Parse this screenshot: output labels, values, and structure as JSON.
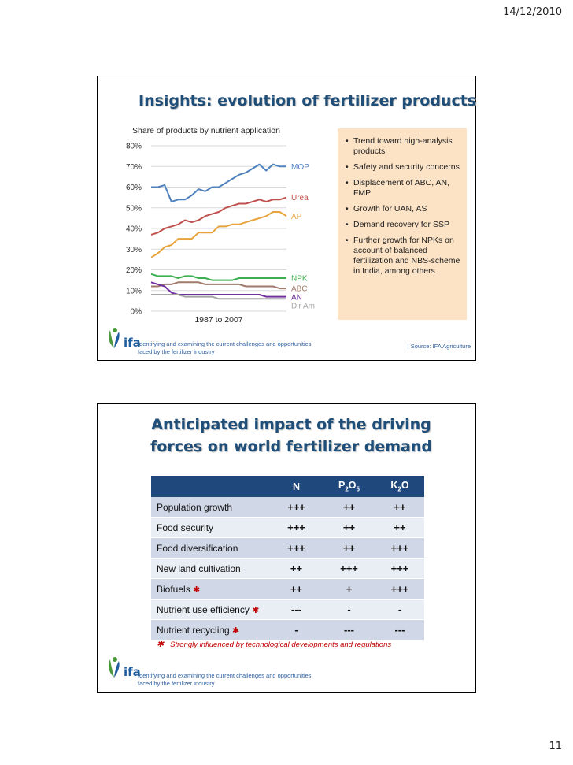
{
  "header": {
    "date": "14/12/2010"
  },
  "page_number": "11",
  "slide1": {
    "title": "Insights: evolution of fertilizer products",
    "logo_text": "ifa",
    "footer": [
      "Identifying and examining the current challenges and opportunities",
      "faced by the fertilizer industry"
    ],
    "source": "| Source: IFA Agriculture",
    "bullets": [
      "Trend toward high-analysis products",
      "Safety and security concerns",
      "Displacement of ABC, AN, FMP",
      "Growth for UAN, AS",
      "Demand recovery for SSP",
      "Further growth for NPKs on account of balanced fertilization and NBS-scheme in India, among others"
    ]
  },
  "chart_data": {
    "type": "line",
    "title": "Share of products by nutrient application",
    "xlabel": "1987 to 2007",
    "ylabel": "",
    "x": [
      1987,
      1988,
      1989,
      1990,
      1991,
      1992,
      1993,
      1994,
      1995,
      1996,
      1997,
      1998,
      1999,
      2000,
      2001,
      2002,
      2003,
      2004,
      2005,
      2006,
      2007
    ],
    "ylim": [
      0,
      80
    ],
    "yticks": [
      "0%",
      "10%",
      "20%",
      "30%",
      "40%",
      "50%",
      "60%",
      "70%",
      "80%"
    ],
    "series": [
      {
        "name": "MOP",
        "color": "#4f81bd",
        "values": [
          60,
          60,
          61,
          53,
          54,
          54,
          56,
          59,
          58,
          60,
          60,
          62,
          64,
          66,
          67,
          69,
          71,
          68,
          71,
          70,
          70
        ]
      },
      {
        "name": "Urea",
        "color": "#c0504d",
        "values": [
          37,
          38,
          40,
          41,
          42,
          44,
          43,
          44,
          46,
          47,
          48,
          50,
          51,
          52,
          52,
          53,
          54,
          53,
          54,
          54,
          55
        ]
      },
      {
        "name": "AP",
        "color": "#e8a33d",
        "values": [
          26,
          28,
          31,
          32,
          35,
          35,
          35,
          38,
          38,
          38,
          41,
          41,
          42,
          42,
          43,
          44,
          45,
          46,
          48,
          48,
          46
        ]
      },
      {
        "name": "NPK",
        "color": "#3caf50",
        "values": [
          18,
          17,
          17,
          17,
          16,
          17,
          17,
          16,
          16,
          15,
          15,
          15,
          15,
          16,
          16,
          16,
          16,
          16,
          16,
          16,
          16
        ]
      },
      {
        "name": "ABC",
        "color": "#a07a6a",
        "values": [
          12,
          12,
          13,
          13,
          14,
          14,
          14,
          14,
          13,
          13,
          13,
          13,
          13,
          13,
          12,
          12,
          12,
          12,
          12,
          11,
          11
        ]
      },
      {
        "name": "AN",
        "color": "#7030a0",
        "values": [
          14,
          13,
          12,
          9,
          8,
          8,
          8,
          8,
          8,
          8,
          8,
          8,
          8,
          8,
          8,
          8,
          8,
          7,
          7,
          7,
          7
        ]
      },
      {
        "name": "Dir Am",
        "color": "#a5a5a5",
        "values": [
          8,
          8,
          8,
          8,
          8,
          7,
          7,
          7,
          7,
          7,
          6,
          6,
          6,
          6,
          6,
          6,
          6,
          6,
          6,
          6,
          6
        ]
      }
    ]
  },
  "slide2": {
    "title": "Anticipated impact of the driving forces on world fertilizer demand",
    "logo_text": "ifa",
    "footer": [
      "Identifying and examining the current challenges and opportunities",
      "faced by the fertilizer industry"
    ],
    "columns": {
      "n": "N",
      "p_base": "P",
      "p_sub1": "2",
      "p_mid": "O",
      "p_sub2": "5",
      "k_base": "K",
      "k_sub": "2",
      "k_end": "O"
    },
    "rows": [
      {
        "label": "Population growth",
        "star": "",
        "n": "+++",
        "p": "++",
        "k": "++"
      },
      {
        "label": "Food security",
        "star": "",
        "n": "+++",
        "p": "++",
        "k": "++"
      },
      {
        "label": "Food diversification",
        "star": "",
        "n": "+++",
        "p": "++",
        "k": "+++"
      },
      {
        "label": "New land cultivation",
        "star": "",
        "n": "++",
        "p": "+++",
        "k": "+++"
      },
      {
        "label": "Biofuels",
        "star": "✱",
        "n": "++",
        "p": "+",
        "k": "+++"
      },
      {
        "label": "Nutrient use efficiency",
        "star": "✱",
        "n": "---",
        "p": "-",
        "k": "-"
      },
      {
        "label": "Nutrient recycling",
        "star": "✱",
        "n": "-",
        "p": "---",
        "k": "---"
      }
    ],
    "footnote_star": "✱",
    "footnote": "Strongly influenced by technological developments and regulations"
  }
}
